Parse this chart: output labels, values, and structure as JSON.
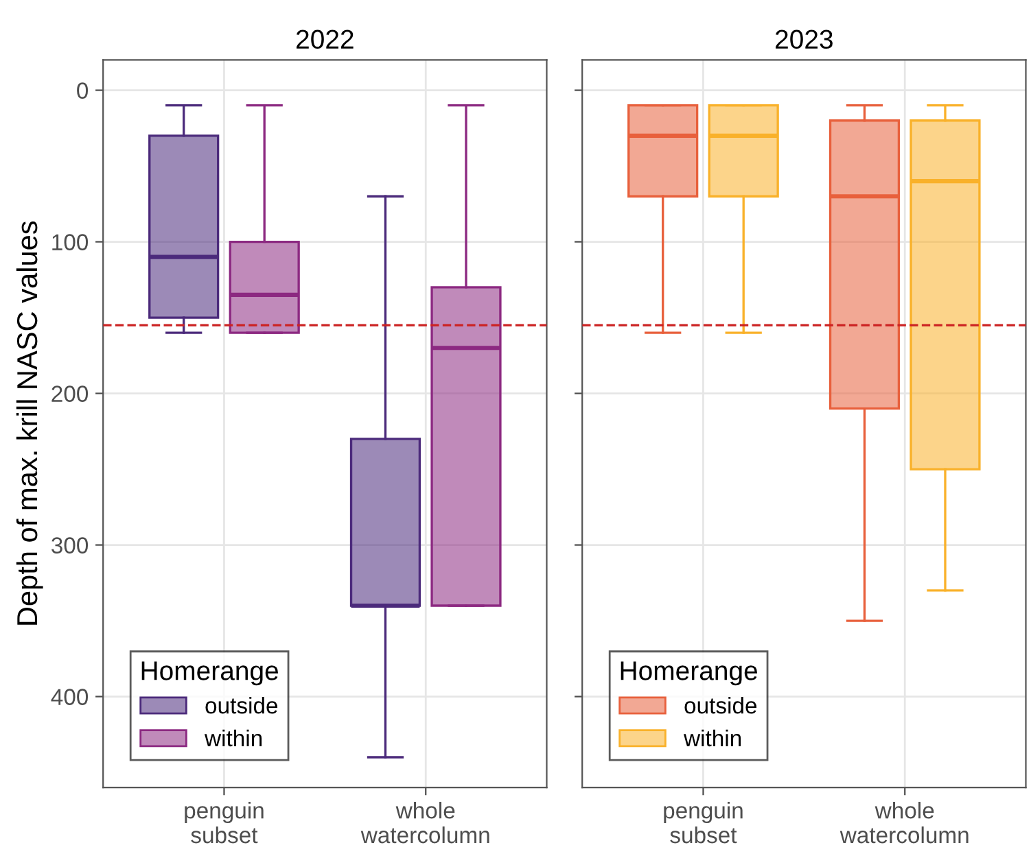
{
  "chart_data": [
    {
      "type": "box",
      "title": "2022",
      "ylabel": "Depth of max. krill NASC values",
      "categories": [
        "penguin\nsubset",
        "whole\nwatercolumn"
      ],
      "legend_title": "Homerange",
      "legend": "bottom left",
      "grid": true,
      "ylim": [
        460,
        -20
      ],
      "yticks": [
        0,
        100,
        200,
        300,
        400
      ],
      "ref_lines": [
        {
          "axis": "y",
          "value": 155,
          "color": "#cc2222",
          "line_style": "dashed"
        }
      ],
      "series": [
        {
          "name": "outside",
          "color": "#4b2a7b",
          "boxes": [
            {
              "low": 10,
              "q1": 30,
              "median": 110,
              "q3": 150,
              "high": 160
            },
            {
              "low": 70,
              "q1": 230,
              "median": 340,
              "q3": 340,
              "high": 440
            }
          ]
        },
        {
          "name": "within",
          "color": "#8c2981",
          "boxes": [
            {
              "low": 10,
              "q1": 100,
              "median": 135,
              "q3": 160,
              "high": 160
            },
            {
              "low": 10,
              "q1": 130,
              "median": 170,
              "q3": 340,
              "high": 340
            }
          ]
        }
      ]
    },
    {
      "type": "box",
      "title": "2023",
      "categories": [
        "penguin\nsubset",
        "whole\nwatercolumn"
      ],
      "legend_title": "Homerange",
      "legend": "bottom left",
      "grid": true,
      "ylim": [
        460,
        -20
      ],
      "yticks": [
        0,
        100,
        200,
        300,
        400
      ],
      "tick_labels": "x",
      "ref_lines": [
        {
          "axis": "y",
          "value": 155,
          "color": "#cc2222",
          "line_style": "dashed"
        }
      ],
      "series": [
        {
          "name": "outside",
          "color": "#e8603c",
          "boxes": [
            {
              "low": 10,
              "q1": 10,
              "median": 30,
              "q3": 70,
              "high": 160
            },
            {
              "low": 10,
              "q1": 20,
              "median": 70,
              "q3": 210,
              "high": 350
            }
          ]
        },
        {
          "name": "within",
          "color": "#f9b12a",
          "boxes": [
            {
              "low": 10,
              "q1": 10,
              "median": 30,
              "q3": 70,
              "high": 160
            },
            {
              "low": 10,
              "q1": 20,
              "median": 60,
              "q3": 250,
              "high": 330
            }
          ]
        }
      ]
    }
  ]
}
